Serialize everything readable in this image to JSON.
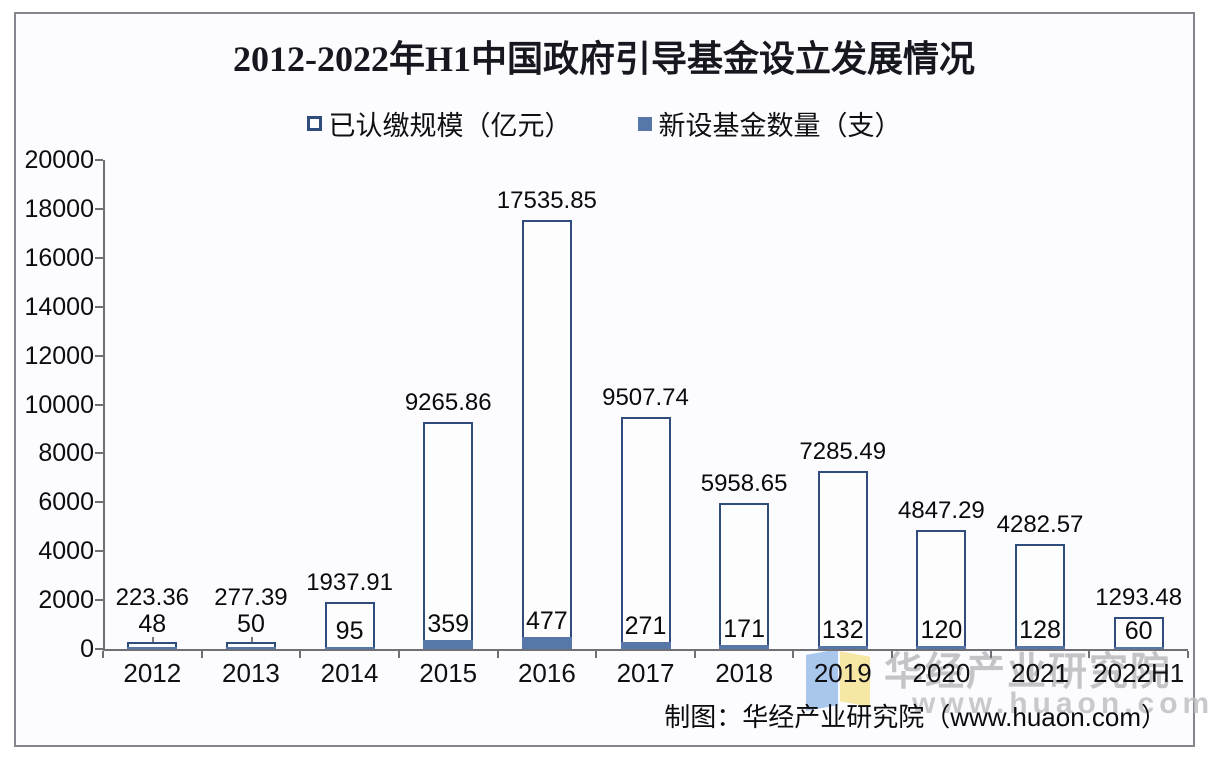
{
  "title": "2012-2022年H1中国政府引导基金设立发展情况",
  "legend": [
    {
      "label": "已认缴规模（亿元）",
      "swatch": "outlined-square"
    },
    {
      "label": "新设基金数量（支）",
      "swatch": "filled-square"
    }
  ],
  "footer_credit": "制图：华经产业研究院（www.huaon.com）",
  "watermark": {
    "line1": "华经产业研究院",
    "line2": "www.huaon.com",
    "logo": "huajing-open-book-logo"
  },
  "colors": {
    "bar_border": "#2e4d7d",
    "bar_count_fill": "#5677a8",
    "bar_scale_fill": "#fdfdfe",
    "axis": "#6f6f76",
    "frame": "#85858d",
    "watermark_gray": "#b9b9bd",
    "logo_blue": "#a9c7ec",
    "logo_yellow": "#f6e7a5"
  },
  "chart_data": {
    "type": "bar",
    "categories": [
      "2012",
      "2013",
      "2014",
      "2015",
      "2016",
      "2017",
      "2018",
      "2019",
      "2020",
      "2021",
      "2022H1"
    ],
    "series": [
      {
        "name": "已认缴规模（亿元）",
        "style": "outlined-bar",
        "values": [
          223.36,
          277.39,
          1937.91,
          9265.86,
          17535.85,
          9507.74,
          5958.65,
          7285.49,
          4847.29,
          4282.57,
          1293.48
        ]
      },
      {
        "name": "新设基金数量（支）",
        "style": "filled-bar",
        "values": [
          48,
          50,
          95,
          359,
          477,
          271,
          171,
          132,
          120,
          128,
          60
        ]
      }
    ],
    "ylim": [
      0,
      20000
    ],
    "yticks": [
      0,
      2000,
      4000,
      6000,
      8000,
      10000,
      12000,
      14000,
      16000,
      18000,
      20000
    ],
    "xlabel": "",
    "ylabel": "",
    "grid": false,
    "legend_position": "top",
    "data_labels": "both series labeled; scale labels above bars, count labels inside bar base; 2012 and 2013 count labels placed above bar with leader line"
  }
}
